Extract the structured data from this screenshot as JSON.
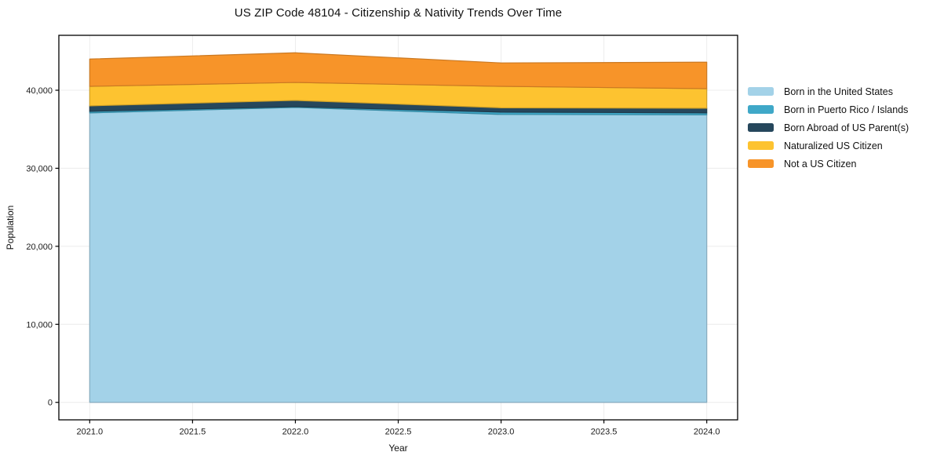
{
  "chart_data": {
    "type": "area",
    "stacked": true,
    "title": "US ZIP Code 48104 - Citizenship & Nativity Trends Over Time",
    "xlabel": "Year",
    "ylabel": "Population",
    "x": [
      2021,
      2022,
      2023,
      2024
    ],
    "series": [
      {
        "name": "Born in the United States",
        "color": "#a3d2e8",
        "values": [
          37100,
          37800,
          36900,
          36850
        ]
      },
      {
        "name": "Born in Puerto Rico / Islands",
        "color": "#3fa8c8",
        "values": [
          200,
          100,
          300,
          250
        ]
      },
      {
        "name": "Born Abroad of US Parent(s)",
        "color": "#26475c",
        "values": [
          700,
          800,
          550,
          600
        ]
      },
      {
        "name": "Naturalized US Citizen",
        "color": "#fdc330",
        "values": [
          2500,
          2300,
          2750,
          2500
        ]
      },
      {
        "name": "Not a US Citizen",
        "color": "#f79429",
        "values": [
          3500,
          3800,
          3000,
          3400
        ]
      }
    ],
    "totals": [
      44000,
      44800,
      43500,
      43600
    ],
    "xlim": [
      2020.85,
      2024.15
    ],
    "ylim": [
      -2240,
      47040
    ],
    "xticks": [
      2021.0,
      2021.5,
      2022.0,
      2022.5,
      2023.0,
      2023.5,
      2024.0
    ],
    "xtick_labels": [
      "2021.0",
      "2021.5",
      "2022.0",
      "2022.5",
      "2023.0",
      "2023.5",
      "2024.0"
    ],
    "yticks": [
      0,
      10000,
      20000,
      30000,
      40000
    ],
    "ytick_labels": [
      "0",
      "10,000",
      "20,000",
      "30,000",
      "40,000"
    ],
    "grid": true,
    "grid_color": "#ececec",
    "axis_color": "#000000",
    "background_color": "#ffffff",
    "legend_position": "right"
  }
}
